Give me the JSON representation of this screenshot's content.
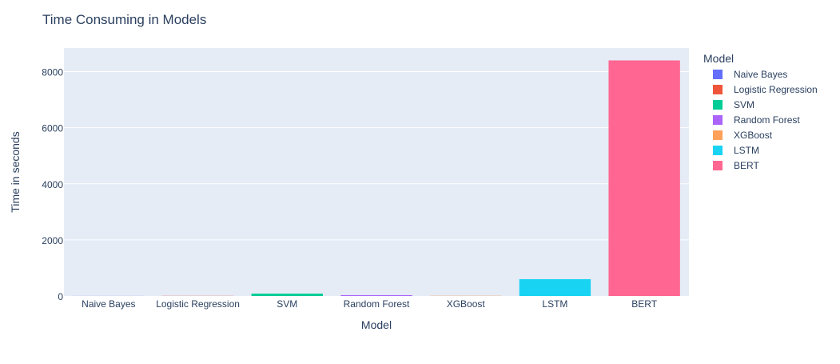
{
  "chart_data": {
    "type": "bar",
    "title": "Time Consuming in Models",
    "xlabel": "Model",
    "ylabel": "Time in seconds",
    "categories": [
      "Naive Bayes",
      "Logistic Regression",
      "SVM",
      "Random Forest",
      "XGBoost",
      "LSTM",
      "BERT"
    ],
    "values": [
      2,
      5,
      85,
      30,
      8,
      600,
      8400
    ],
    "colors": [
      "#636efa",
      "#EF553B",
      "#00cc96",
      "#ab63fa",
      "#FFA15A",
      "#19d3f3",
      "#FF6692"
    ],
    "ylim": [
      0,
      8842
    ],
    "yticks": [
      0,
      2000,
      4000,
      6000,
      8000
    ],
    "ytick_labels": [
      "0",
      "2000",
      "4000",
      "6000",
      "8000"
    ],
    "grid": true,
    "legend": {
      "title": "Model",
      "placement": "right",
      "entries": [
        "Naive Bayes",
        "Logistic Regression",
        "SVM",
        "Random Forest",
        "XGBoost",
        "LSTM",
        "BERT"
      ]
    },
    "colors_theme": {
      "plot_background": "#e5ecf6",
      "grid": "#ffffff",
      "text": "#2a3f5f"
    }
  }
}
